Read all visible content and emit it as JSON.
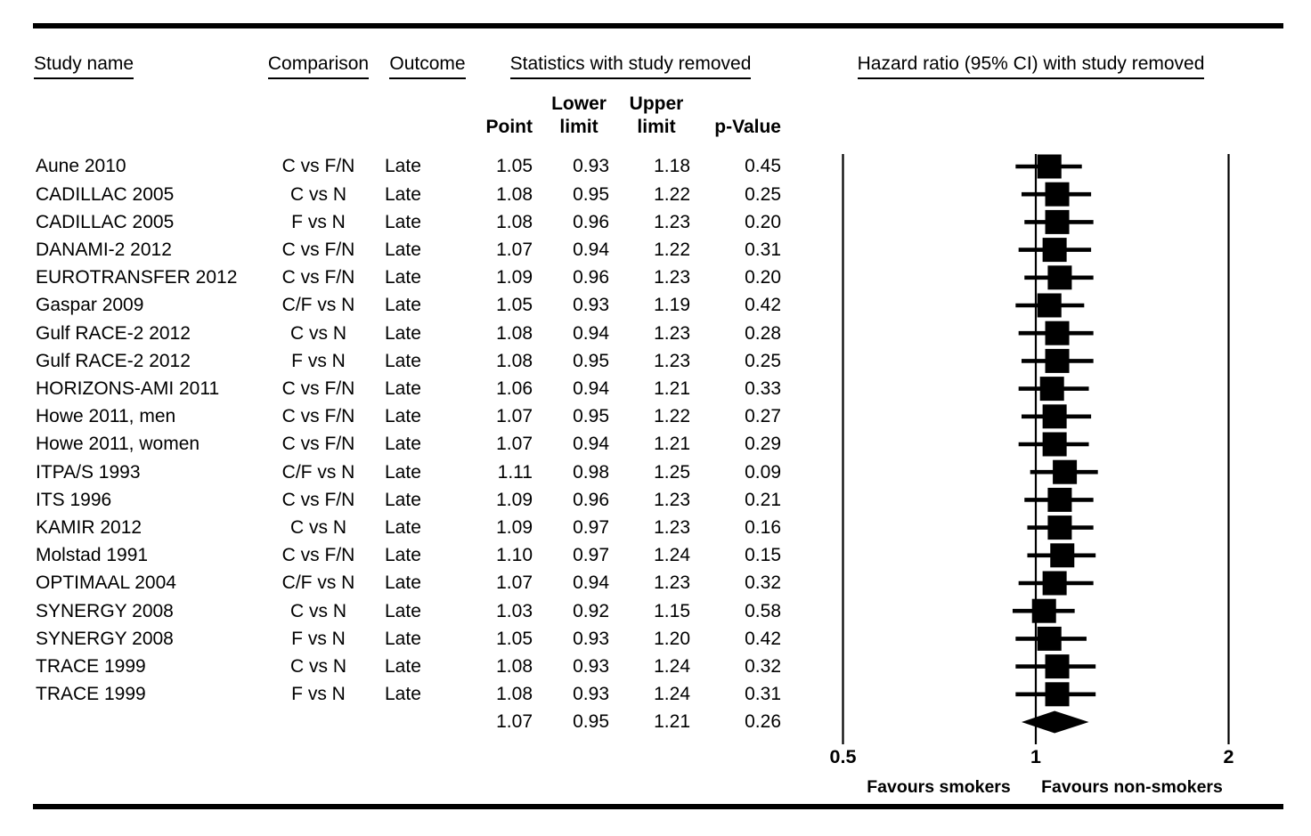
{
  "header": {
    "study": "Study name",
    "comparison": "Comparison",
    "outcome": "Outcome",
    "stats_group": "Statistics with study removed",
    "plot_group": "Hazard ratio (95% CI) with study removed",
    "point": "Point",
    "lower_line1": "Lower",
    "lower_line2": "limit",
    "upper_line1": "Upper",
    "upper_line2": "limit",
    "p_value": "p-Value"
  },
  "footer": {
    "left": "Favours smokers",
    "right": "Favours non-smokers"
  },
  "colors": {
    "ink": "#000000",
    "background": "#ffffff"
  },
  "chart_data": {
    "type": "forest",
    "title": "Hazard ratio (95% CI) with study removed",
    "x_scale": "log",
    "xlim": [
      0.5,
      2
    ],
    "x_ticks": [
      0.5,
      1,
      2
    ],
    "x_tick_labels": [
      "0.5",
      "1",
      "2"
    ],
    "axis_note_left": "Favours smokers",
    "axis_note_right": "Favours non-smokers",
    "rows": [
      {
        "study": "Aune 2010",
        "comparison": "C vs F/N",
        "outcome": "Late",
        "point": 1.05,
        "lower": 0.93,
        "upper": 1.18,
        "p": 0.45
      },
      {
        "study": "CADILLAC 2005",
        "comparison": "C vs N",
        "outcome": "Late",
        "point": 1.08,
        "lower": 0.95,
        "upper": 1.22,
        "p": 0.25
      },
      {
        "study": "CADILLAC 2005",
        "comparison": "F vs N",
        "outcome": "Late",
        "point": 1.08,
        "lower": 0.96,
        "upper": 1.23,
        "p": 0.2
      },
      {
        "study": "DANAMI-2 2012",
        "comparison": "C vs F/N",
        "outcome": "Late",
        "point": 1.07,
        "lower": 0.94,
        "upper": 1.22,
        "p": 0.31
      },
      {
        "study": "EUROTRANSFER 2012",
        "comparison": "C vs F/N",
        "outcome": "Late",
        "point": 1.09,
        "lower": 0.96,
        "upper": 1.23,
        "p": 0.2
      },
      {
        "study": "Gaspar 2009",
        "comparison": "C/F vs N",
        "outcome": "Late",
        "point": 1.05,
        "lower": 0.93,
        "upper": 1.19,
        "p": 0.42
      },
      {
        "study": "Gulf RACE-2 2012",
        "comparison": "C vs N",
        "outcome": "Late",
        "point": 1.08,
        "lower": 0.94,
        "upper": 1.23,
        "p": 0.28
      },
      {
        "study": "Gulf RACE-2 2012",
        "comparison": "F vs N",
        "outcome": "Late",
        "point": 1.08,
        "lower": 0.95,
        "upper": 1.23,
        "p": 0.25
      },
      {
        "study": "HORIZONS-AMI 2011",
        "comparison": "C vs F/N",
        "outcome": "Late",
        "point": 1.06,
        "lower": 0.94,
        "upper": 1.21,
        "p": 0.33
      },
      {
        "study": "Howe 2011, men",
        "comparison": "C vs F/N",
        "outcome": "Late",
        "point": 1.07,
        "lower": 0.95,
        "upper": 1.22,
        "p": 0.27
      },
      {
        "study": "Howe 2011, women",
        "comparison": "C vs F/N",
        "outcome": "Late",
        "point": 1.07,
        "lower": 0.94,
        "upper": 1.21,
        "p": 0.29
      },
      {
        "study": "ITPA/S 1993",
        "comparison": "C/F vs N",
        "outcome": "Late",
        "point": 1.11,
        "lower": 0.98,
        "upper": 1.25,
        "p": 0.09
      },
      {
        "study": "ITS 1996",
        "comparison": "C vs F/N",
        "outcome": "Late",
        "point": 1.09,
        "lower": 0.96,
        "upper": 1.23,
        "p": 0.21
      },
      {
        "study": "KAMIR 2012",
        "comparison": "C vs N",
        "outcome": "Late",
        "point": 1.09,
        "lower": 0.97,
        "upper": 1.23,
        "p": 0.16
      },
      {
        "study": "Molstad 1991",
        "comparison": "C vs F/N",
        "outcome": "Late",
        "point": 1.1,
        "lower": 0.97,
        "upper": 1.24,
        "p": 0.15
      },
      {
        "study": "OPTIMAAL 2004",
        "comparison": "C/F vs N",
        "outcome": "Late",
        "point": 1.07,
        "lower": 0.94,
        "upper": 1.23,
        "p": 0.32
      },
      {
        "study": "SYNERGY 2008",
        "comparison": "C vs N",
        "outcome": "Late",
        "point": 1.03,
        "lower": 0.92,
        "upper": 1.15,
        "p": 0.58
      },
      {
        "study": "SYNERGY 2008",
        "comparison": "F vs N",
        "outcome": "Late",
        "point": 1.05,
        "lower": 0.93,
        "upper": 1.2,
        "p": 0.42
      },
      {
        "study": "TRACE 1999",
        "comparison": "C vs N",
        "outcome": "Late",
        "point": 1.08,
        "lower": 0.93,
        "upper": 1.24,
        "p": 0.32
      },
      {
        "study": "TRACE 1999",
        "comparison": "F vs N",
        "outcome": "Late",
        "point": 1.08,
        "lower": 0.93,
        "upper": 1.24,
        "p": 0.31
      }
    ],
    "summary": {
      "point": 1.07,
      "lower": 0.95,
      "upper": 1.21,
      "p": 0.26
    }
  }
}
